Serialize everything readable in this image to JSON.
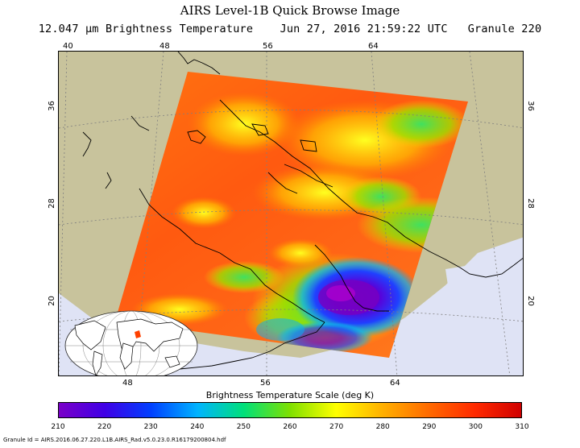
{
  "title": "AIRS Level-1B Quick Browse Image",
  "subtitle": {
    "wavelength": "12.047 μm Brightness Temperature",
    "datetime": "Jun 27, 2016 21:59:22 UTC",
    "granule": "Granule 220"
  },
  "map": {
    "longitude_labels_top": [
      "40",
      "48",
      "56",
      "64"
    ],
    "longitude_labels_bottom": [
      "48",
      "56",
      "64"
    ],
    "latitude_labels_left": [
      "36",
      "28",
      "20"
    ],
    "latitude_labels_right": [
      "36",
      "28",
      "20"
    ],
    "colors": {
      "land": "#c8c39c",
      "ocean": "#dfe3f5",
      "gridline": "#7f7f7f",
      "coastline": "#000000"
    }
  },
  "color_scale": {
    "title": "Brightness Temperature Scale (deg K)",
    "min": 210,
    "max": 310,
    "tick_labels": [
      "210",
      "220",
      "230",
      "240",
      "250",
      "260",
      "270",
      "280",
      "290",
      "300",
      "310"
    ],
    "stops": [
      "#7a00c8",
      "#3f00e6",
      "#0040ff",
      "#00b4ff",
      "#00e07a",
      "#7fe000",
      "#ffff00",
      "#ffb000",
      "#ff6a00",
      "#ff2a00",
      "#d00000"
    ]
  },
  "footer": "Granule Id = AIRS.2016.06.27.220.L1B.AIRS_Rad.v5.0.23.0.R16179200804.hdf"
}
